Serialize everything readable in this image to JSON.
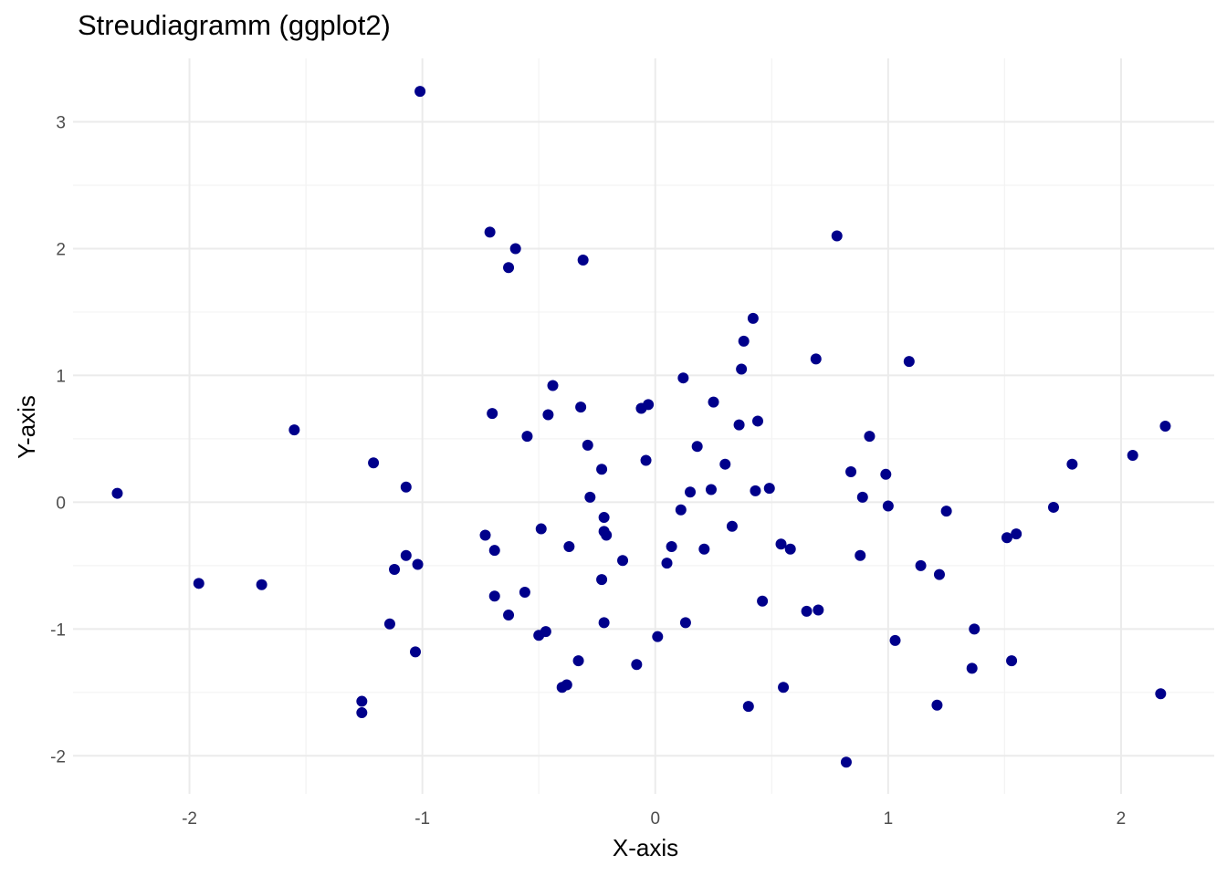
{
  "chart_data": {
    "type": "scatter",
    "title": "Streudiagramm (ggplot2)",
    "xlabel": "X-axis",
    "ylabel": "Y-axis",
    "xlim": [
      -2.5,
      2.4
    ],
    "ylim": [
      -2.3,
      3.5
    ],
    "x_ticks": [
      -2,
      -1,
      0,
      1,
      2
    ],
    "y_ticks": [
      -2,
      -1,
      0,
      1,
      2,
      3
    ],
    "x_tick_labels": [
      "-2",
      "-1",
      "0",
      "1",
      "2"
    ],
    "y_tick_labels": [
      "-2",
      "-1",
      "0",
      "1",
      "2",
      "3"
    ],
    "grid": true,
    "point_color": "#00008b",
    "points": [
      [
        -1.01,
        3.24
      ],
      [
        -0.71,
        2.13
      ],
      [
        -0.6,
        2.0
      ],
      [
        -0.63,
        1.85
      ],
      [
        -0.31,
        1.91
      ],
      [
        0.78,
        2.1
      ],
      [
        0.42,
        1.45
      ],
      [
        0.38,
        1.27
      ],
      [
        0.69,
        1.13
      ],
      [
        1.09,
        1.11
      ],
      [
        0.37,
        1.05
      ],
      [
        0.12,
        0.98
      ],
      [
        -0.44,
        0.92
      ],
      [
        -0.03,
        0.77
      ],
      [
        -0.06,
        0.74
      ],
      [
        -0.32,
        0.75
      ],
      [
        0.25,
        0.79
      ],
      [
        -0.7,
        0.7
      ],
      [
        -0.46,
        0.69
      ],
      [
        0.36,
        0.61
      ],
      [
        0.44,
        0.64
      ],
      [
        2.19,
        0.6
      ],
      [
        -1.55,
        0.57
      ],
      [
        -0.55,
        0.52
      ],
      [
        0.92,
        0.52
      ],
      [
        -0.29,
        0.45
      ],
      [
        0.18,
        0.44
      ],
      [
        2.05,
        0.37
      ],
      [
        -0.04,
        0.33
      ],
      [
        -1.21,
        0.31
      ],
      [
        0.3,
        0.3
      ],
      [
        1.79,
        0.3
      ],
      [
        -0.23,
        0.26
      ],
      [
        0.84,
        0.24
      ],
      [
        0.99,
        0.22
      ],
      [
        -1.07,
        0.12
      ],
      [
        0.49,
        0.11
      ],
      [
        0.24,
        0.1
      ],
      [
        0.15,
        0.08
      ],
      [
        0.43,
        0.09
      ],
      [
        -2.31,
        0.07
      ],
      [
        -0.28,
        0.04
      ],
      [
        0.89,
        0.04
      ],
      [
        1.0,
        -0.03
      ],
      [
        0.11,
        -0.06
      ],
      [
        1.71,
        -0.04
      ],
      [
        1.25,
        -0.07
      ],
      [
        -0.22,
        -0.12
      ],
      [
        0.33,
        -0.19
      ],
      [
        -0.49,
        -0.21
      ],
      [
        -0.22,
        -0.23
      ],
      [
        -0.21,
        -0.26
      ],
      [
        -0.73,
        -0.26
      ],
      [
        1.55,
        -0.25
      ],
      [
        1.51,
        -0.28
      ],
      [
        0.54,
        -0.33
      ],
      [
        0.07,
        -0.35
      ],
      [
        -0.37,
        -0.35
      ],
      [
        0.21,
        -0.37
      ],
      [
        0.58,
        -0.37
      ],
      [
        -0.69,
        -0.38
      ],
      [
        -1.07,
        -0.42
      ],
      [
        0.88,
        -0.42
      ],
      [
        -0.14,
        -0.46
      ],
      [
        0.05,
        -0.48
      ],
      [
        -1.02,
        -0.49
      ],
      [
        1.14,
        -0.5
      ],
      [
        -1.12,
        -0.53
      ],
      [
        1.22,
        -0.57
      ],
      [
        -0.23,
        -0.61
      ],
      [
        -1.96,
        -0.64
      ],
      [
        -1.69,
        -0.65
      ],
      [
        -0.56,
        -0.71
      ],
      [
        -0.69,
        -0.74
      ],
      [
        0.46,
        -0.78
      ],
      [
        0.7,
        -0.85
      ],
      [
        0.65,
        -0.86
      ],
      [
        -0.63,
        -0.89
      ],
      [
        -0.22,
        -0.95
      ],
      [
        0.13,
        -0.95
      ],
      [
        -1.14,
        -0.96
      ],
      [
        1.37,
        -1.0
      ],
      [
        -0.47,
        -1.02
      ],
      [
        -0.5,
        -1.05
      ],
      [
        0.01,
        -1.06
      ],
      [
        1.03,
        -1.09
      ],
      [
        -1.03,
        -1.18
      ],
      [
        -0.33,
        -1.25
      ],
      [
        1.53,
        -1.25
      ],
      [
        -0.08,
        -1.28
      ],
      [
        1.36,
        -1.31
      ],
      [
        -0.38,
        -1.44
      ],
      [
        -0.4,
        -1.46
      ],
      [
        0.55,
        -1.46
      ],
      [
        2.17,
        -1.51
      ],
      [
        -1.26,
        -1.57
      ],
      [
        0.4,
        -1.61
      ],
      [
        1.21,
        -1.6
      ],
      [
        -1.26,
        -1.66
      ],
      [
        0.82,
        -2.05
      ]
    ]
  }
}
